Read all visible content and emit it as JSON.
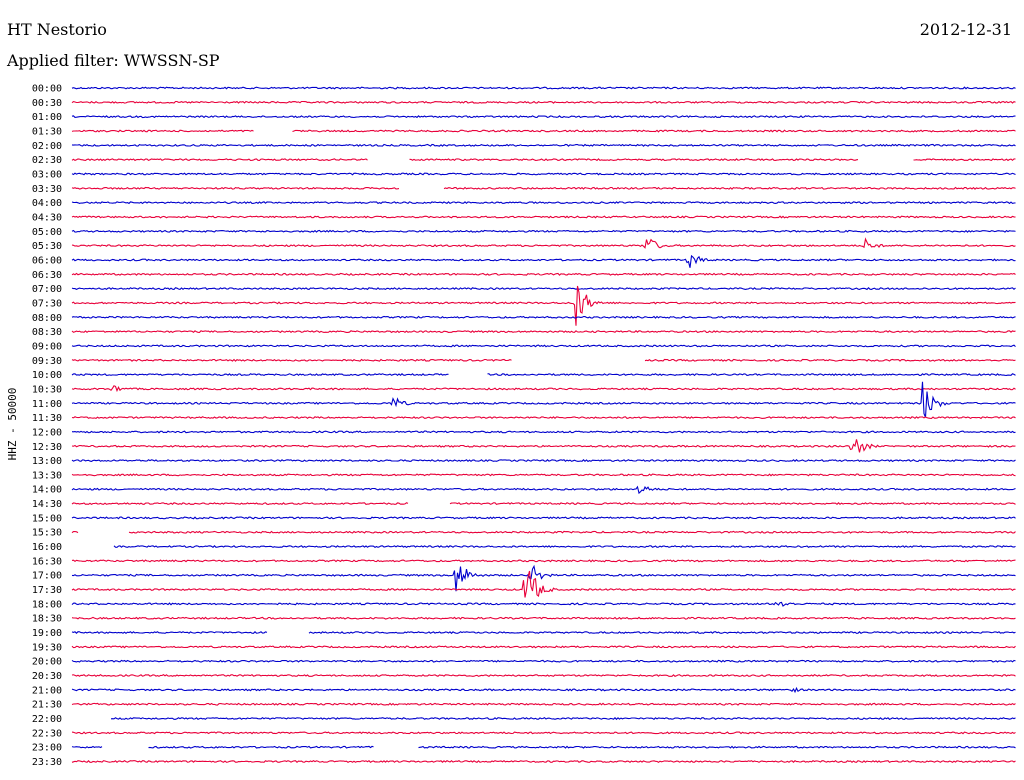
{
  "header": {
    "station": "HT Nestorio",
    "date": "2012-12-31",
    "filter_label": "Applied filter: WWSSN-SP"
  },
  "colors": {
    "trace_a": "#0000cc",
    "trace_b": "#e8003a"
  },
  "chart_data": {
    "type": "line",
    "title": "HT Nestorio",
    "subtitle": "Applied filter: WWSSN-SP",
    "ylabel": "HHZ - 50000",
    "xlabel": "",
    "row_labels": [
      "00:00",
      "00:30",
      "01:00",
      "01:30",
      "02:00",
      "02:30",
      "03:00",
      "03:30",
      "04:00",
      "04:30",
      "05:00",
      "05:30",
      "06:00",
      "06:30",
      "07:00",
      "07:30",
      "08:00",
      "08:30",
      "09:00",
      "09:30",
      "10:00",
      "10:30",
      "11:00",
      "11:30",
      "12:00",
      "12:30",
      "13:00",
      "13:30",
      "14:00",
      "14:30",
      "15:00",
      "15:30",
      "16:00",
      "16:30",
      "17:00",
      "17:30",
      "18:00",
      "18:30",
      "19:00",
      "19:30",
      "20:00",
      "20:30",
      "21:00",
      "21:30",
      "22:00",
      "22:30",
      "23:00",
      "23:30"
    ],
    "row_window_minutes": 30,
    "gaps": [
      {
        "row": "01:30",
        "from_min": 5.8,
        "to_min": 7.0
      },
      {
        "row": "02:30",
        "from_min": 9.4,
        "to_min": 10.7
      },
      {
        "row": "02:30",
        "from_min": 25.0,
        "to_min": 26.7
      },
      {
        "row": "03:30",
        "from_min": 10.4,
        "to_min": 11.8
      },
      {
        "row": "09:30",
        "from_min": 14.0,
        "to_min": 18.2
      },
      {
        "row": "10:00",
        "from_min": 12.0,
        "to_min": 13.2
      },
      {
        "row": "14:30",
        "from_min": 10.7,
        "to_min": 12.0
      },
      {
        "row": "15:30",
        "from_min": 0.2,
        "to_min": 1.8
      },
      {
        "row": "16:00",
        "from_min": 0.0,
        "to_min": 1.3
      },
      {
        "row": "19:00",
        "from_min": 6.2,
        "to_min": 7.5
      },
      {
        "row": "22:00",
        "from_min": 0.0,
        "to_min": 1.2
      },
      {
        "row": "23:00",
        "from_min": 1.0,
        "to_min": 2.4
      },
      {
        "row": "23:00",
        "from_min": 9.6,
        "to_min": 11.0
      }
    ],
    "events": [
      {
        "row": "05:30",
        "min": 18.2,
        "amp": 14
      },
      {
        "row": "05:30",
        "min": 25.2,
        "amp": 8
      },
      {
        "row": "06:00",
        "min": 19.6,
        "amp": 10
      },
      {
        "row": "07:30",
        "min": 16.0,
        "amp": 28
      },
      {
        "row": "11:00",
        "min": 27.0,
        "amp": 26
      },
      {
        "row": "11:00",
        "min": 10.2,
        "amp": 8
      },
      {
        "row": "12:30",
        "min": 24.8,
        "amp": 16
      },
      {
        "row": "14:00",
        "min": 18.0,
        "amp": 8
      },
      {
        "row": "17:00",
        "min": 12.2,
        "amp": 22
      },
      {
        "row": "17:00",
        "min": 14.6,
        "amp": 12
      },
      {
        "row": "17:30",
        "min": 14.4,
        "amp": 36
      },
      {
        "row": "18:00",
        "min": 22.4,
        "amp": 7
      },
      {
        "row": "21:00",
        "min": 22.8,
        "amp": 4
      },
      {
        "row": "10:30",
        "min": 1.3,
        "amp": 5
      }
    ],
    "grid": false
  }
}
